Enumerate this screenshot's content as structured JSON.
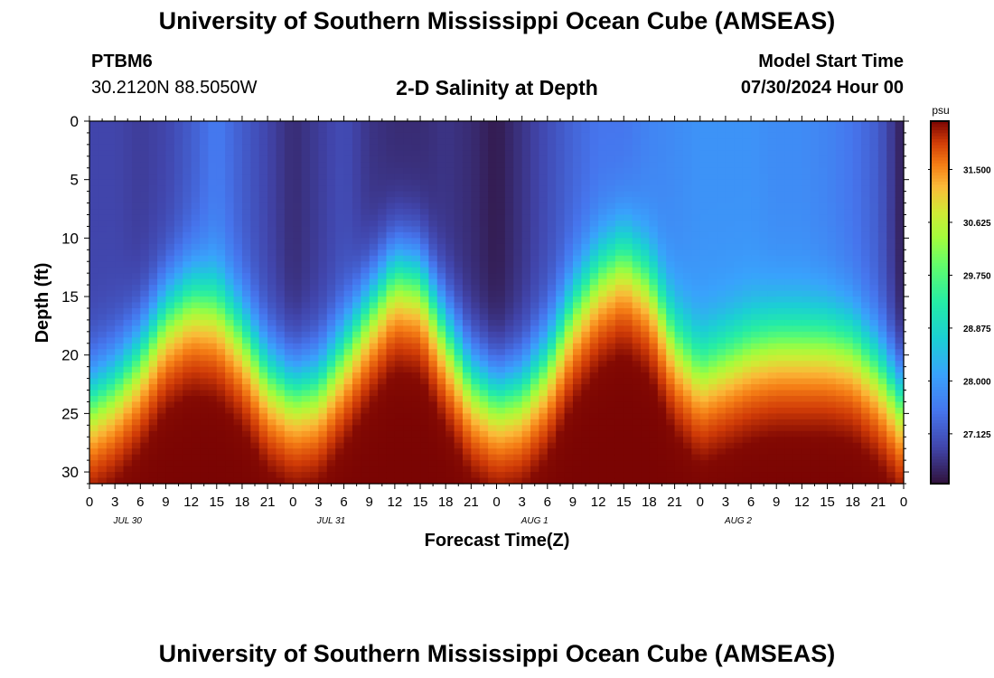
{
  "header": {
    "title": "University of Southern Mississippi Ocean Cube (AMSEAS)",
    "station": "PTBM6",
    "coords": "30.2120N  88.5050W",
    "plot_title": "2-D Salinity at Depth",
    "start_label": "Model Start Time",
    "start_value": "07/30/2024 Hour 00"
  },
  "footer": {
    "title": "University of Southern Mississippi Ocean Cube (AMSEAS)"
  },
  "chart_data": {
    "type": "heatmap",
    "title": "2-D Salinity at Depth",
    "xlabel": "Forecast Time(Z)",
    "ylabel": "Depth (ft)",
    "x_range_hours": [
      0,
      96
    ],
    "y_range_ft": [
      0,
      31
    ],
    "x_tick_labels": [
      "0",
      "3",
      "6",
      "9",
      "12",
      "15",
      "18",
      "21",
      "0",
      "3",
      "6",
      "9",
      "12",
      "15",
      "18",
      "21",
      "0",
      "3",
      "6",
      "9",
      "12",
      "15",
      "18",
      "21",
      "0",
      "3",
      "6",
      "9",
      "12",
      "15",
      "18",
      "21",
      "0"
    ],
    "x_tick_step_hours": 3,
    "date_labels": [
      {
        "label": "JUL 30",
        "hour": 4.5
      },
      {
        "label": "JUL 31",
        "hour": 28.5
      },
      {
        "label": "AUG 1",
        "hour": 52.5
      },
      {
        "label": "AUG 2",
        "hour": 76.5
      }
    ],
    "y_ticks": [
      0,
      5,
      10,
      15,
      20,
      25,
      30
    ],
    "y_tick_labels": [
      "0",
      "5",
      "10",
      "15",
      "20",
      "25",
      "30"
    ],
    "colorbar": {
      "unit": "psu",
      "range": [
        26.3,
        32.3
      ],
      "tick_values": [
        31.5,
        30.625,
        29.75,
        28.875,
        28.0,
        27.125
      ],
      "tick_labels": [
        "31.500",
        "30.625",
        "29.750",
        "28.875",
        "28.000",
        "27.125"
      ]
    },
    "halocline_depth_ft": {
      "hours": [
        0,
        3,
        6,
        9,
        12,
        15,
        18,
        21,
        24,
        27,
        30,
        33,
        36,
        39,
        42,
        45,
        48,
        51,
        54,
        57,
        60,
        63,
        66,
        69,
        72,
        75,
        78,
        81,
        84,
        87,
        90,
        93,
        96
      ],
      "depths": [
        23.5,
        22,
        19.5,
        16,
        14.5,
        15,
        17.5,
        21,
        22.5,
        22,
        19,
        15.5,
        12.5,
        13,
        17.5,
        21.5,
        23,
        22.5,
        20,
        15.5,
        12.5,
        11,
        13,
        18,
        20.5,
        19.5,
        18.5,
        18,
        18,
        18,
        18.5,
        20.5,
        23.5
      ]
    },
    "surface_min_salinity": {
      "hours": [
        0,
        3,
        6,
        9,
        12,
        15,
        18,
        21,
        24,
        27,
        30,
        33,
        36,
        39,
        42,
        45,
        48,
        51,
        54,
        57,
        60,
        63,
        66,
        69,
        72,
        75,
        78,
        81,
        84,
        87,
        90,
        93,
        96
      ],
      "psu": [
        26.9,
        26.9,
        26.8,
        26.9,
        27.2,
        27.6,
        27.2,
        26.9,
        26.6,
        26.8,
        27.0,
        26.7,
        26.6,
        26.6,
        26.7,
        26.6,
        26.4,
        26.7,
        27.0,
        27.3,
        27.5,
        27.5,
        27.7,
        27.8,
        27.9,
        27.9,
        27.9,
        27.8,
        27.8,
        27.7,
        27.5,
        27.2,
        26.4
      ]
    },
    "bottom_max_salinity_psu": 32.2
  }
}
